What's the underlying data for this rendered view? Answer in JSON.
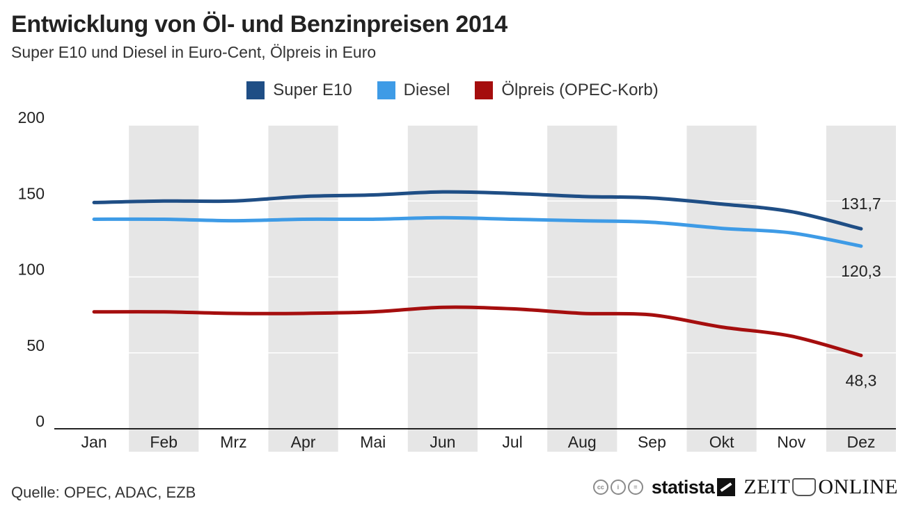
{
  "header": {
    "title": "Entwicklung von Öl- und Benzinpreisen 2014",
    "subtitle": "Super E10 und Diesel in Euro-Cent, Ölpreis in Euro"
  },
  "legend": [
    {
      "label": "Super E10",
      "color": "#1f4e85"
    },
    {
      "label": "Diesel",
      "color": "#3e9be6"
    },
    {
      "label": "Ölpreis (OPEC-Korb)",
      "color": "#a50e0e"
    }
  ],
  "chart_data": {
    "type": "line",
    "categories": [
      "Jan",
      "Feb",
      "Mrz",
      "Apr",
      "Mai",
      "Jun",
      "Jul",
      "Aug",
      "Sep",
      "Okt",
      "Nov",
      "Dez"
    ],
    "y_ticks": [
      0,
      50,
      100,
      150,
      200
    ],
    "ylim": [
      0,
      200
    ],
    "grid": true,
    "series": [
      {
        "name": "Super E10",
        "color": "#1f4e85",
        "values": [
          149,
          150,
          150,
          153,
          154,
          156,
          155,
          153,
          152,
          148,
          143,
          131.7
        ],
        "end_label": "131,7"
      },
      {
        "name": "Diesel",
        "color": "#3e9be6",
        "values": [
          138,
          138,
          137,
          138,
          138,
          139,
          138,
          137,
          136,
          132,
          129,
          120.3
        ],
        "end_label": "120,3"
      },
      {
        "name": "Ölpreis (OPEC-Korb)",
        "color": "#a50e0e",
        "values": [
          77,
          77,
          76,
          76,
          77,
          80,
          79,
          76,
          75,
          67,
          61,
          48.3
        ],
        "end_label": "48,3"
      }
    ]
  },
  "footer": {
    "source": "Quelle: OPEC, ADAC, EZB",
    "cc_icons": [
      "cc",
      "i",
      "="
    ],
    "brand_statista": "statista",
    "brand_zeit_left": "ZEIT",
    "brand_zeit_right": "ONLINE"
  }
}
